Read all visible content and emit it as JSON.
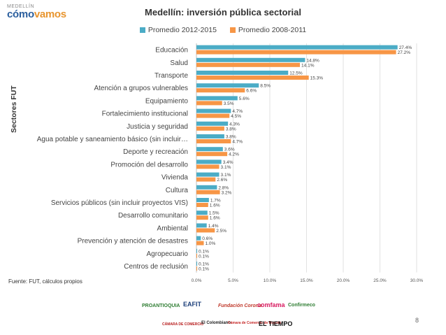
{
  "logo": {
    "small": "MEDELLÍN",
    "brand_a": "cómo",
    "brand_b": "vamos"
  },
  "page_number": "8",
  "source": "Fuente: FUT, cálculos propios",
  "y_axis_title": "Sectores FUT",
  "sponsors": [
    "PROANTIOQUIA",
    "EAFIT",
    "Fundación Corona",
    "comfama",
    "Confirmeco",
    "CÁMARA DE COMERCIO",
    "El Colombiano",
    "Cámara de Comercio de Bogotá",
    "EL TIEMPO"
  ],
  "colors": {
    "series_2012": "#4bacc6",
    "series_2008": "#f79646"
  },
  "chart_data": {
    "type": "bar",
    "orientation": "horizontal",
    "title": "Medellín: inversión pública sectorial",
    "xlabel": "",
    "ylabel": "Sectores FUT",
    "xlim": [
      0,
      30
    ],
    "x_ticks": [
      "0.0%",
      "5.0%",
      "10.0%",
      "15.0%",
      "20.0%",
      "25.0%",
      "30.0%"
    ],
    "x_tick_values": [
      0,
      5,
      10,
      15,
      20,
      25,
      30
    ],
    "legend_position": "top",
    "categories": [
      "Educación",
      "Salud",
      "Transporte",
      "Atención a grupos vulnerables",
      "Equipamiento",
      "Fortalecimiento institucional",
      "Justicia y seguridad",
      "Agua potable y saneamiento básico (sin incluir…",
      "Deporte y recreación",
      "Promoción del desarrollo",
      "Vivienda",
      "Cultura",
      "Servicios públicos  (sin incluir proyectos VIS)",
      "Desarrollo comunitario",
      "Ambiental",
      "Prevención y atención de desastres",
      "Agropecuario",
      "Centros de reclusión"
    ],
    "series": [
      {
        "name": "Promedio 2012-2015",
        "values": [
          27.4,
          14.8,
          12.5,
          8.5,
          5.6,
          4.7,
          4.3,
          3.8,
          3.6,
          3.4,
          3.1,
          2.8,
          1.7,
          1.5,
          1.4,
          0.6,
          0.1,
          0.1
        ],
        "labels": [
          "27.4%",
          "14.8%",
          "12.5%",
          "8.5%",
          "5.6%",
          "4.7%",
          "4.3%",
          "3.8%",
          "3.6%",
          "3.4%",
          "3.1%",
          "2.8%",
          "1.7%",
          "1.5%",
          "1.4%",
          "0.6%",
          "0.1%",
          "0.1%"
        ]
      },
      {
        "name": "Promedio 2008-2011",
        "values": [
          27.2,
          14.1,
          15.3,
          6.6,
          3.5,
          4.5,
          3.8,
          4.7,
          4.2,
          3.1,
          2.6,
          3.2,
          1.6,
          1.6,
          2.5,
          1.0,
          0.1,
          0.1
        ],
        "labels": [
          "27.2%",
          "14.1%",
          "15.3%",
          "6.6%",
          "3.5%",
          "4.5%",
          "3.8%",
          "4.7%",
          "4.2%",
          "3.1%",
          "2.6%",
          "3.2%",
          "1.6%",
          "1.6%",
          "2.5%",
          "1.0%",
          "0.1%",
          "0.1%"
        ]
      }
    ]
  }
}
